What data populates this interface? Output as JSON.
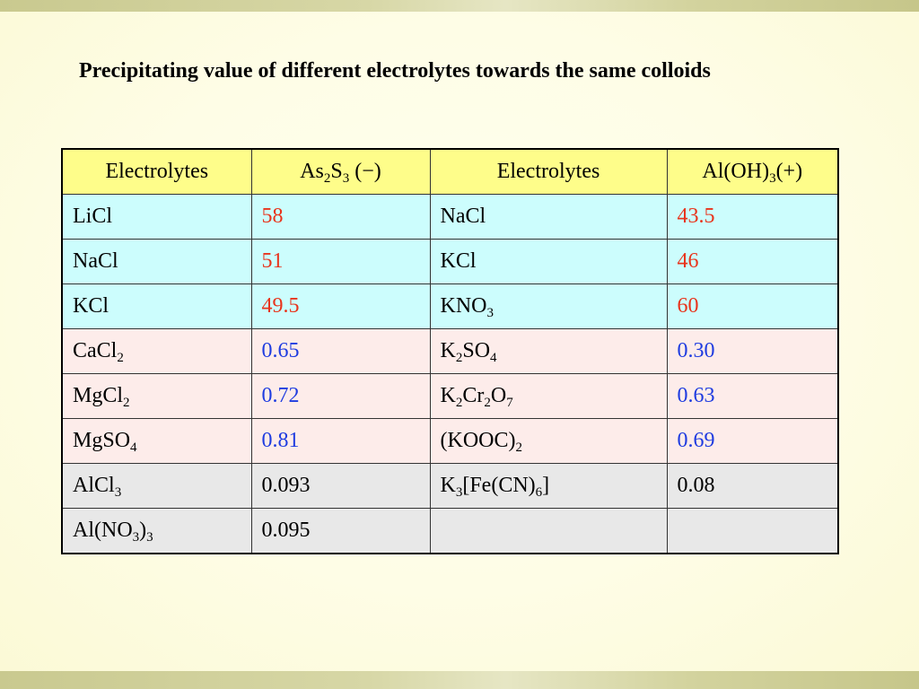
{
  "slide": {
    "title": "Precipitating value of different electrolytes towards the same colloids"
  },
  "colors": {
    "background": "#fefde6",
    "header_fill": "#fefd8a",
    "monovalent_fill": "#ccfdfd",
    "divalent_fill": "#fdecea",
    "trivalent_fill": "#e8e8e8",
    "red_value": "#e8341c",
    "blue_value": "#1f3ce0"
  },
  "table": {
    "headers": [
      {
        "parts": [
          {
            "t": "Electrolytes"
          }
        ]
      },
      {
        "parts": [
          {
            "t": "As"
          },
          {
            "t": "2",
            "sub": true
          },
          {
            "t": "S"
          },
          {
            "t": "3",
            "sub": true
          },
          {
            "t": " (−)"
          }
        ]
      },
      {
        "parts": [
          {
            "t": "Electrolytes"
          }
        ]
      },
      {
        "parts": [
          {
            "t": "Al(OH)"
          },
          {
            "t": "3",
            "sub": true
          },
          {
            "t": "(+)"
          }
        ]
      }
    ],
    "rows": [
      {
        "group": "cyan",
        "value_color": "red",
        "cells": [
          {
            "parts": [
              {
                "t": "LiCl"
              }
            ]
          },
          {
            "parts": [
              {
                "t": "58"
              }
            ]
          },
          {
            "parts": [
              {
                "t": "NaCl"
              }
            ]
          },
          {
            "parts": [
              {
                "t": "43.5"
              }
            ]
          }
        ]
      },
      {
        "group": "cyan",
        "value_color": "red",
        "cells": [
          {
            "parts": [
              {
                "t": "NaCl"
              }
            ]
          },
          {
            "parts": [
              {
                "t": "51"
              }
            ]
          },
          {
            "parts": [
              {
                "t": "KCl"
              }
            ]
          },
          {
            "parts": [
              {
                "t": "46"
              }
            ]
          }
        ]
      },
      {
        "group": "cyan",
        "value_color": "red",
        "cells": [
          {
            "parts": [
              {
                "t": "KCl"
              }
            ]
          },
          {
            "parts": [
              {
                "t": "49.5"
              }
            ]
          },
          {
            "parts": [
              {
                "t": "KNO"
              },
              {
                "t": "3",
                "sub": true
              }
            ]
          },
          {
            "parts": [
              {
                "t": "60"
              }
            ]
          }
        ]
      },
      {
        "group": "pink",
        "value_color": "blue",
        "cells": [
          {
            "parts": [
              {
                "t": "CaCl"
              },
              {
                "t": "2",
                "sub": true
              }
            ]
          },
          {
            "parts": [
              {
                "t": "0.65"
              }
            ]
          },
          {
            "parts": [
              {
                "t": "K"
              },
              {
                "t": "2",
                "sub": true
              },
              {
                "t": "SO"
              },
              {
                "t": "4",
                "sub": true
              }
            ]
          },
          {
            "parts": [
              {
                "t": "0.30"
              }
            ]
          }
        ]
      },
      {
        "group": "pink",
        "value_color": "blue",
        "cells": [
          {
            "parts": [
              {
                "t": "MgCl"
              },
              {
                "t": "2",
                "sub": true
              }
            ]
          },
          {
            "parts": [
              {
                "t": "0.72"
              }
            ]
          },
          {
            "parts": [
              {
                "t": "K"
              },
              {
                "t": "2",
                "sub": true
              },
              {
                "t": "Cr"
              },
              {
                "t": "2",
                "sub": true
              },
              {
                "t": "O"
              },
              {
                "t": "7",
                "sub": true
              }
            ]
          },
          {
            "parts": [
              {
                "t": "0.63"
              }
            ]
          }
        ]
      },
      {
        "group": "pink",
        "value_color": "blue",
        "cells": [
          {
            "parts": [
              {
                "t": "MgSO"
              },
              {
                "t": "4",
                "sub": true
              }
            ]
          },
          {
            "parts": [
              {
                "t": "0.81"
              }
            ]
          },
          {
            "parts": [
              {
                "t": "(KOOC)"
              },
              {
                "t": "2",
                "sub": true
              }
            ]
          },
          {
            "parts": [
              {
                "t": "0.69"
              }
            ]
          }
        ]
      },
      {
        "group": "gray",
        "value_color": "black",
        "cells": [
          {
            "parts": [
              {
                "t": "AlCl"
              },
              {
                "t": "3",
                "sub": true
              }
            ]
          },
          {
            "parts": [
              {
                "t": "0.093"
              }
            ]
          },
          {
            "parts": [
              {
                "t": "K"
              },
              {
                "t": "3",
                "sub": true
              },
              {
                "t": "[Fe(CN)"
              },
              {
                "t": "6",
                "sub": true
              },
              {
                "t": "]"
              }
            ]
          },
          {
            "parts": [
              {
                "t": "0.08"
              }
            ]
          }
        ]
      },
      {
        "group": "gray",
        "value_color": "black",
        "cells": [
          {
            "parts": [
              {
                "t": "Al(NO"
              },
              {
                "t": "3",
                "sub": true
              },
              {
                "t": ")"
              },
              {
                "t": "3",
                "sub": true
              }
            ]
          },
          {
            "parts": [
              {
                "t": "0.095"
              }
            ]
          },
          {
            "parts": []
          },
          {
            "parts": []
          }
        ]
      }
    ]
  }
}
